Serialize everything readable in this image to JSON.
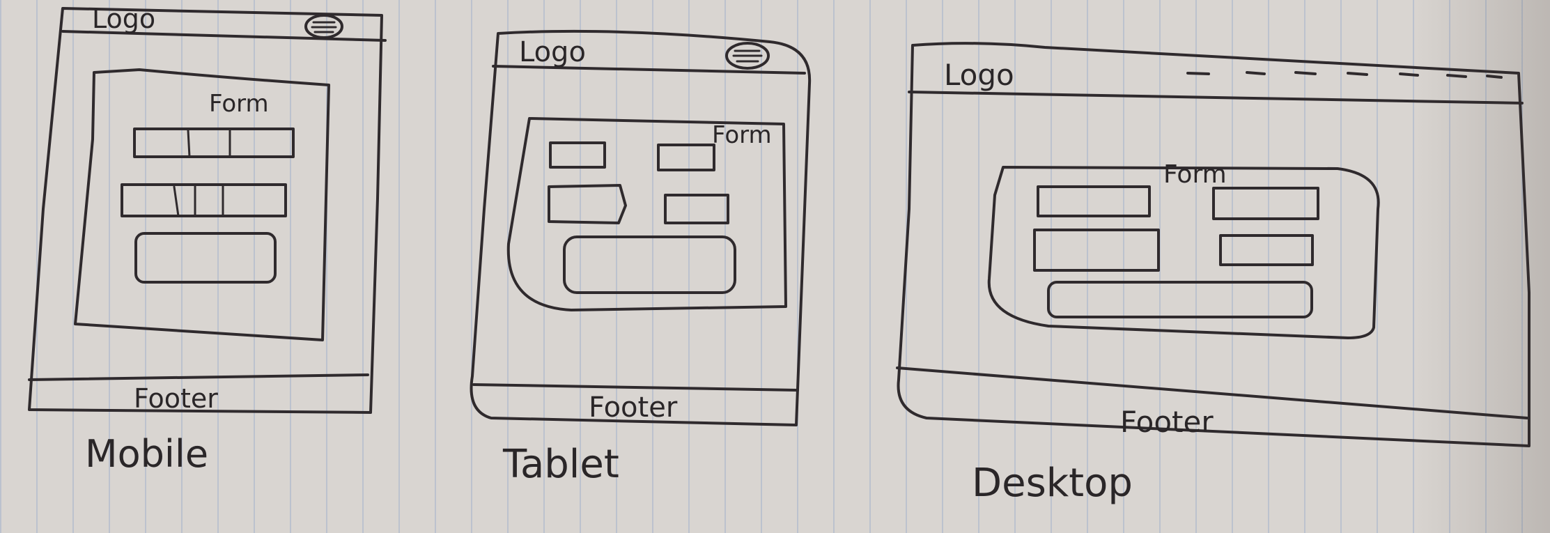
{
  "wireframes": [
    {
      "label": "Mobile",
      "header": {
        "logo": "Logo",
        "icon": "hamburger-menu-icon"
      },
      "form_title": "Form",
      "footer": "Footer"
    },
    {
      "label": "Tablet",
      "header": {
        "logo": "Logo",
        "icon": "hamburger-menu-icon"
      },
      "form_title": "Form",
      "footer": "Footer"
    },
    {
      "label": "Desktop",
      "header": {
        "logo": "Logo",
        "nav": "nav-links-dashes"
      },
      "form_title": "Form",
      "footer": "Footer"
    }
  ],
  "colors": {
    "paper": "#d9d5d1",
    "ink": "#2f2a2d",
    "ruled_lines": "#8ea2c8"
  }
}
